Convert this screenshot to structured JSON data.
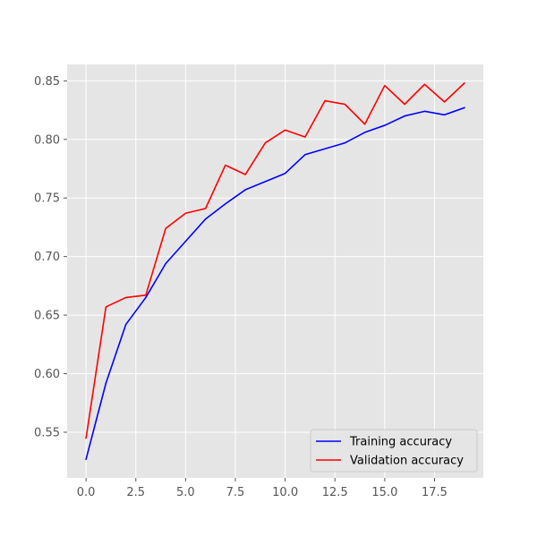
{
  "chart_data": {
    "type": "line",
    "title": "",
    "xlabel": "",
    "ylabel": "",
    "x": [
      0,
      1,
      2,
      3,
      4,
      5,
      6,
      7,
      8,
      9,
      10,
      11,
      12,
      13,
      14,
      15,
      16,
      17,
      18,
      19
    ],
    "series": [
      {
        "name": "Training accuracy",
        "color": "#0000ff",
        "values": [
          0.527,
          0.592,
          0.642,
          0.665,
          0.694,
          0.713,
          0.732,
          0.745,
          0.757,
          0.764,
          0.771,
          0.787,
          0.792,
          0.797,
          0.806,
          0.812,
          0.82,
          0.824,
          0.821,
          0.827
        ]
      },
      {
        "name": "Validation accuracy",
        "color": "#ff0000",
        "values": [
          0.545,
          0.657,
          0.665,
          0.667,
          0.724,
          0.737,
          0.741,
          0.778,
          0.77,
          0.797,
          0.808,
          0.802,
          0.833,
          0.83,
          0.813,
          0.846,
          0.83,
          0.847,
          0.832,
          0.848
        ]
      }
    ],
    "xlim": [
      -0.95,
      19.95
    ],
    "ylim": [
      0.511,
      0.864
    ],
    "xticks": [
      0,
      2.5,
      5,
      7.5,
      10,
      12.5,
      15,
      17.5
    ],
    "xtick_labels": [
      "0.0",
      "2.5",
      "5.0",
      "7.5",
      "10.0",
      "12.5",
      "15.0",
      "17.5"
    ],
    "yticks": [
      0.55,
      0.6,
      0.65,
      0.7,
      0.75,
      0.8,
      0.85
    ],
    "ytick_labels": [
      "0.55",
      "0.60",
      "0.65",
      "0.70",
      "0.75",
      "0.80",
      "0.85"
    ],
    "grid": true,
    "legend_position": "lower-right",
    "background_color": "#e5e5e5",
    "grid_color": "#ffffff"
  }
}
